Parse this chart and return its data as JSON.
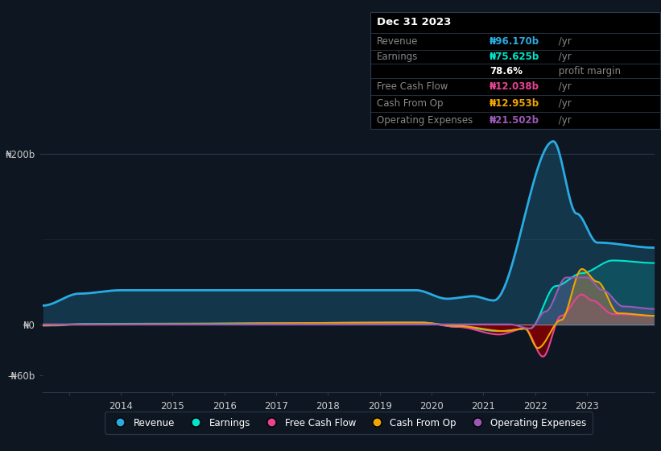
{
  "background_color": "#0e1621",
  "plot_bg_color": "#0e1621",
  "grid_color": "#2a3a4a",
  "colors": {
    "revenue": "#29abe2",
    "earnings": "#00e5cc",
    "free_cash_flow": "#e84393",
    "cash_from_op": "#f0a500",
    "operating_expenses": "#9b59b6"
  },
  "legend_items": [
    "Revenue",
    "Earnings",
    "Free Cash Flow",
    "Cash From Op",
    "Operating Expenses"
  ],
  "revenue_color_text": "#29abe2",
  "earnings_color_text": "#00e5cc",
  "fcf_color_text": "#e84393",
  "cash_op_color_text": "#f0a500",
  "opex_color_text": "#9b59b6"
}
